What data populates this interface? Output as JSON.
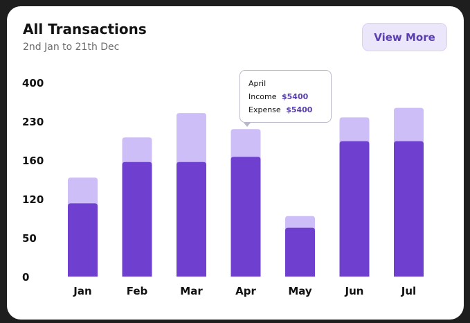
{
  "header": {
    "title": "All Transactions",
    "subtitle": "2nd Jan to 21th Dec",
    "view_more_label": "View More"
  },
  "tooltip": {
    "month": "April",
    "income_label": "Income",
    "income_value": "$5400",
    "expense_label": "Expense",
    "expense_value": "$5400"
  },
  "colors": {
    "bar_dark": "#6f3fd0",
    "bar_light": "#cdbef7",
    "accent": "#5a3fb0"
  },
  "chart_data": {
    "type": "bar",
    "stacked": true,
    "categories": [
      "Jan",
      "Feb",
      "Mar",
      "Apr",
      "May",
      "Jun",
      "Jul"
    ],
    "y_ticks": [
      "0",
      "50",
      "120",
      "160",
      "230",
      "400"
    ],
    "series": [
      {
        "values": [
          112,
          158,
          158,
          166,
          68,
          194,
          194
        ]
      },
      {
        "values": [
          30,
          43,
          108,
          50,
          21,
          53,
          95
        ]
      }
    ],
    "grid": false,
    "legend": "none"
  }
}
